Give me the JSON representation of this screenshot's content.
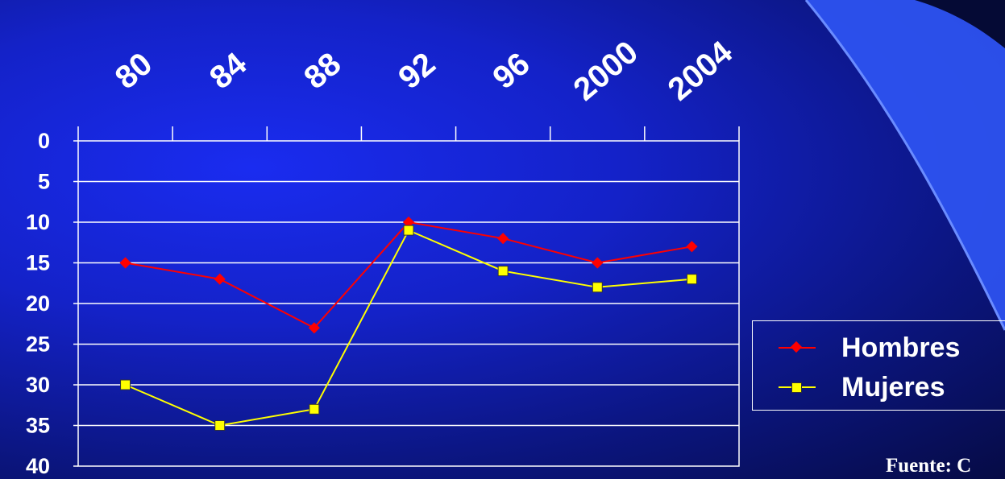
{
  "colors": {
    "hombres": "#ff0000",
    "mujeres": "#ffff00",
    "axis": "#ffffff",
    "grid": "#ffffff",
    "deco_blue": "#3a64ff"
  },
  "chart_data": {
    "type": "line",
    "title": "",
    "xlabel": "",
    "ylabel": "",
    "x_tick_labels": [
      "80",
      "84",
      "88",
      "92",
      "96",
      "2000",
      "2004"
    ],
    "x_axis_position": "top",
    "y_axis_inverted": true,
    "ylim": [
      0,
      40
    ],
    "y_ticks": [
      0,
      5,
      10,
      15,
      20,
      25,
      30,
      35,
      40
    ],
    "grid": true,
    "legend_position": "right",
    "series": [
      {
        "name": "Hombres",
        "color": "#ff0000",
        "marker": "diamond",
        "values": [
          15,
          17,
          23,
          10,
          12,
          15,
          13
        ]
      },
      {
        "name": "Mujeres",
        "color": "#ffff00",
        "marker": "square",
        "values": [
          30,
          35,
          33,
          11,
          16,
          18,
          17
        ]
      }
    ]
  },
  "legend": {
    "items": [
      {
        "label": "Hombres",
        "color": "#ff0000",
        "marker": "diamond"
      },
      {
        "label": "Mujeres",
        "color": "#ffff00",
        "marker": "square"
      }
    ]
  },
  "source": {
    "text": "Fuente: C"
  }
}
